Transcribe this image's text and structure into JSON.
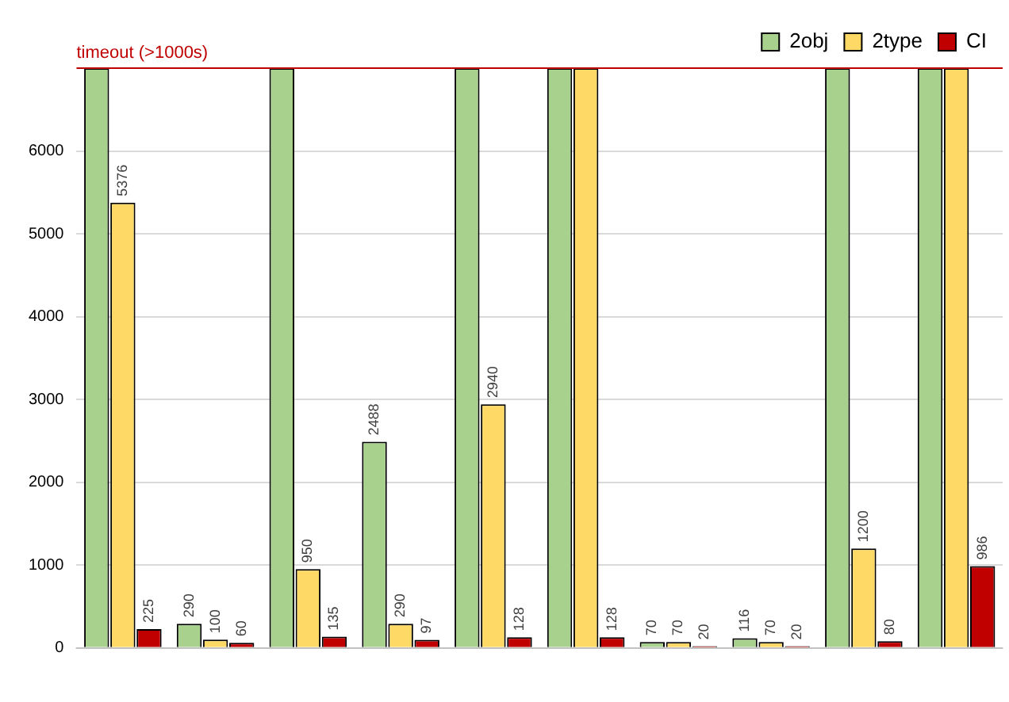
{
  "chart_data": {
    "type": "bar",
    "categories": [
      null,
      null,
      null,
      null,
      null,
      null,
      null,
      null,
      null,
      null
    ],
    "series": [
      {
        "name": "2obj",
        "color": "#a9d18e",
        "values": [
          7000,
          290,
          7000,
          2488,
          7000,
          7000,
          70,
          116,
          7000,
          7000
        ],
        "value_labels": [
          null,
          "290",
          null,
          "2488",
          null,
          null,
          "70",
          "116",
          null,
          null
        ]
      },
      {
        "name": "2type",
        "color": "#ffd966",
        "values": [
          5376,
          100,
          950,
          290,
          2940,
          7000,
          70,
          70,
          1200,
          7000
        ],
        "value_labels": [
          "5376",
          "100",
          "950",
          "290",
          "2940",
          null,
          "70",
          "70",
          "1200",
          null
        ]
      },
      {
        "name": "CI",
        "color": "#c00000",
        "values": [
          225,
          60,
          135,
          97,
          128,
          128,
          20,
          20,
          80,
          986
        ],
        "value_labels": [
          "225",
          "60",
          "135",
          "97",
          "128",
          "128",
          "20",
          "20",
          "80",
          "986"
        ]
      }
    ],
    "ylim": [
      0,
      7000
    ],
    "yticks": [
      0,
      1000,
      2000,
      3000,
      4000,
      5000,
      6000
    ],
    "grid": "y",
    "legend": "top right",
    "ref_lines": [
      {
        "axis": "y",
        "value": 7000,
        "label": "timeout (>1000s)",
        "color": "#c00000"
      }
    ]
  }
}
